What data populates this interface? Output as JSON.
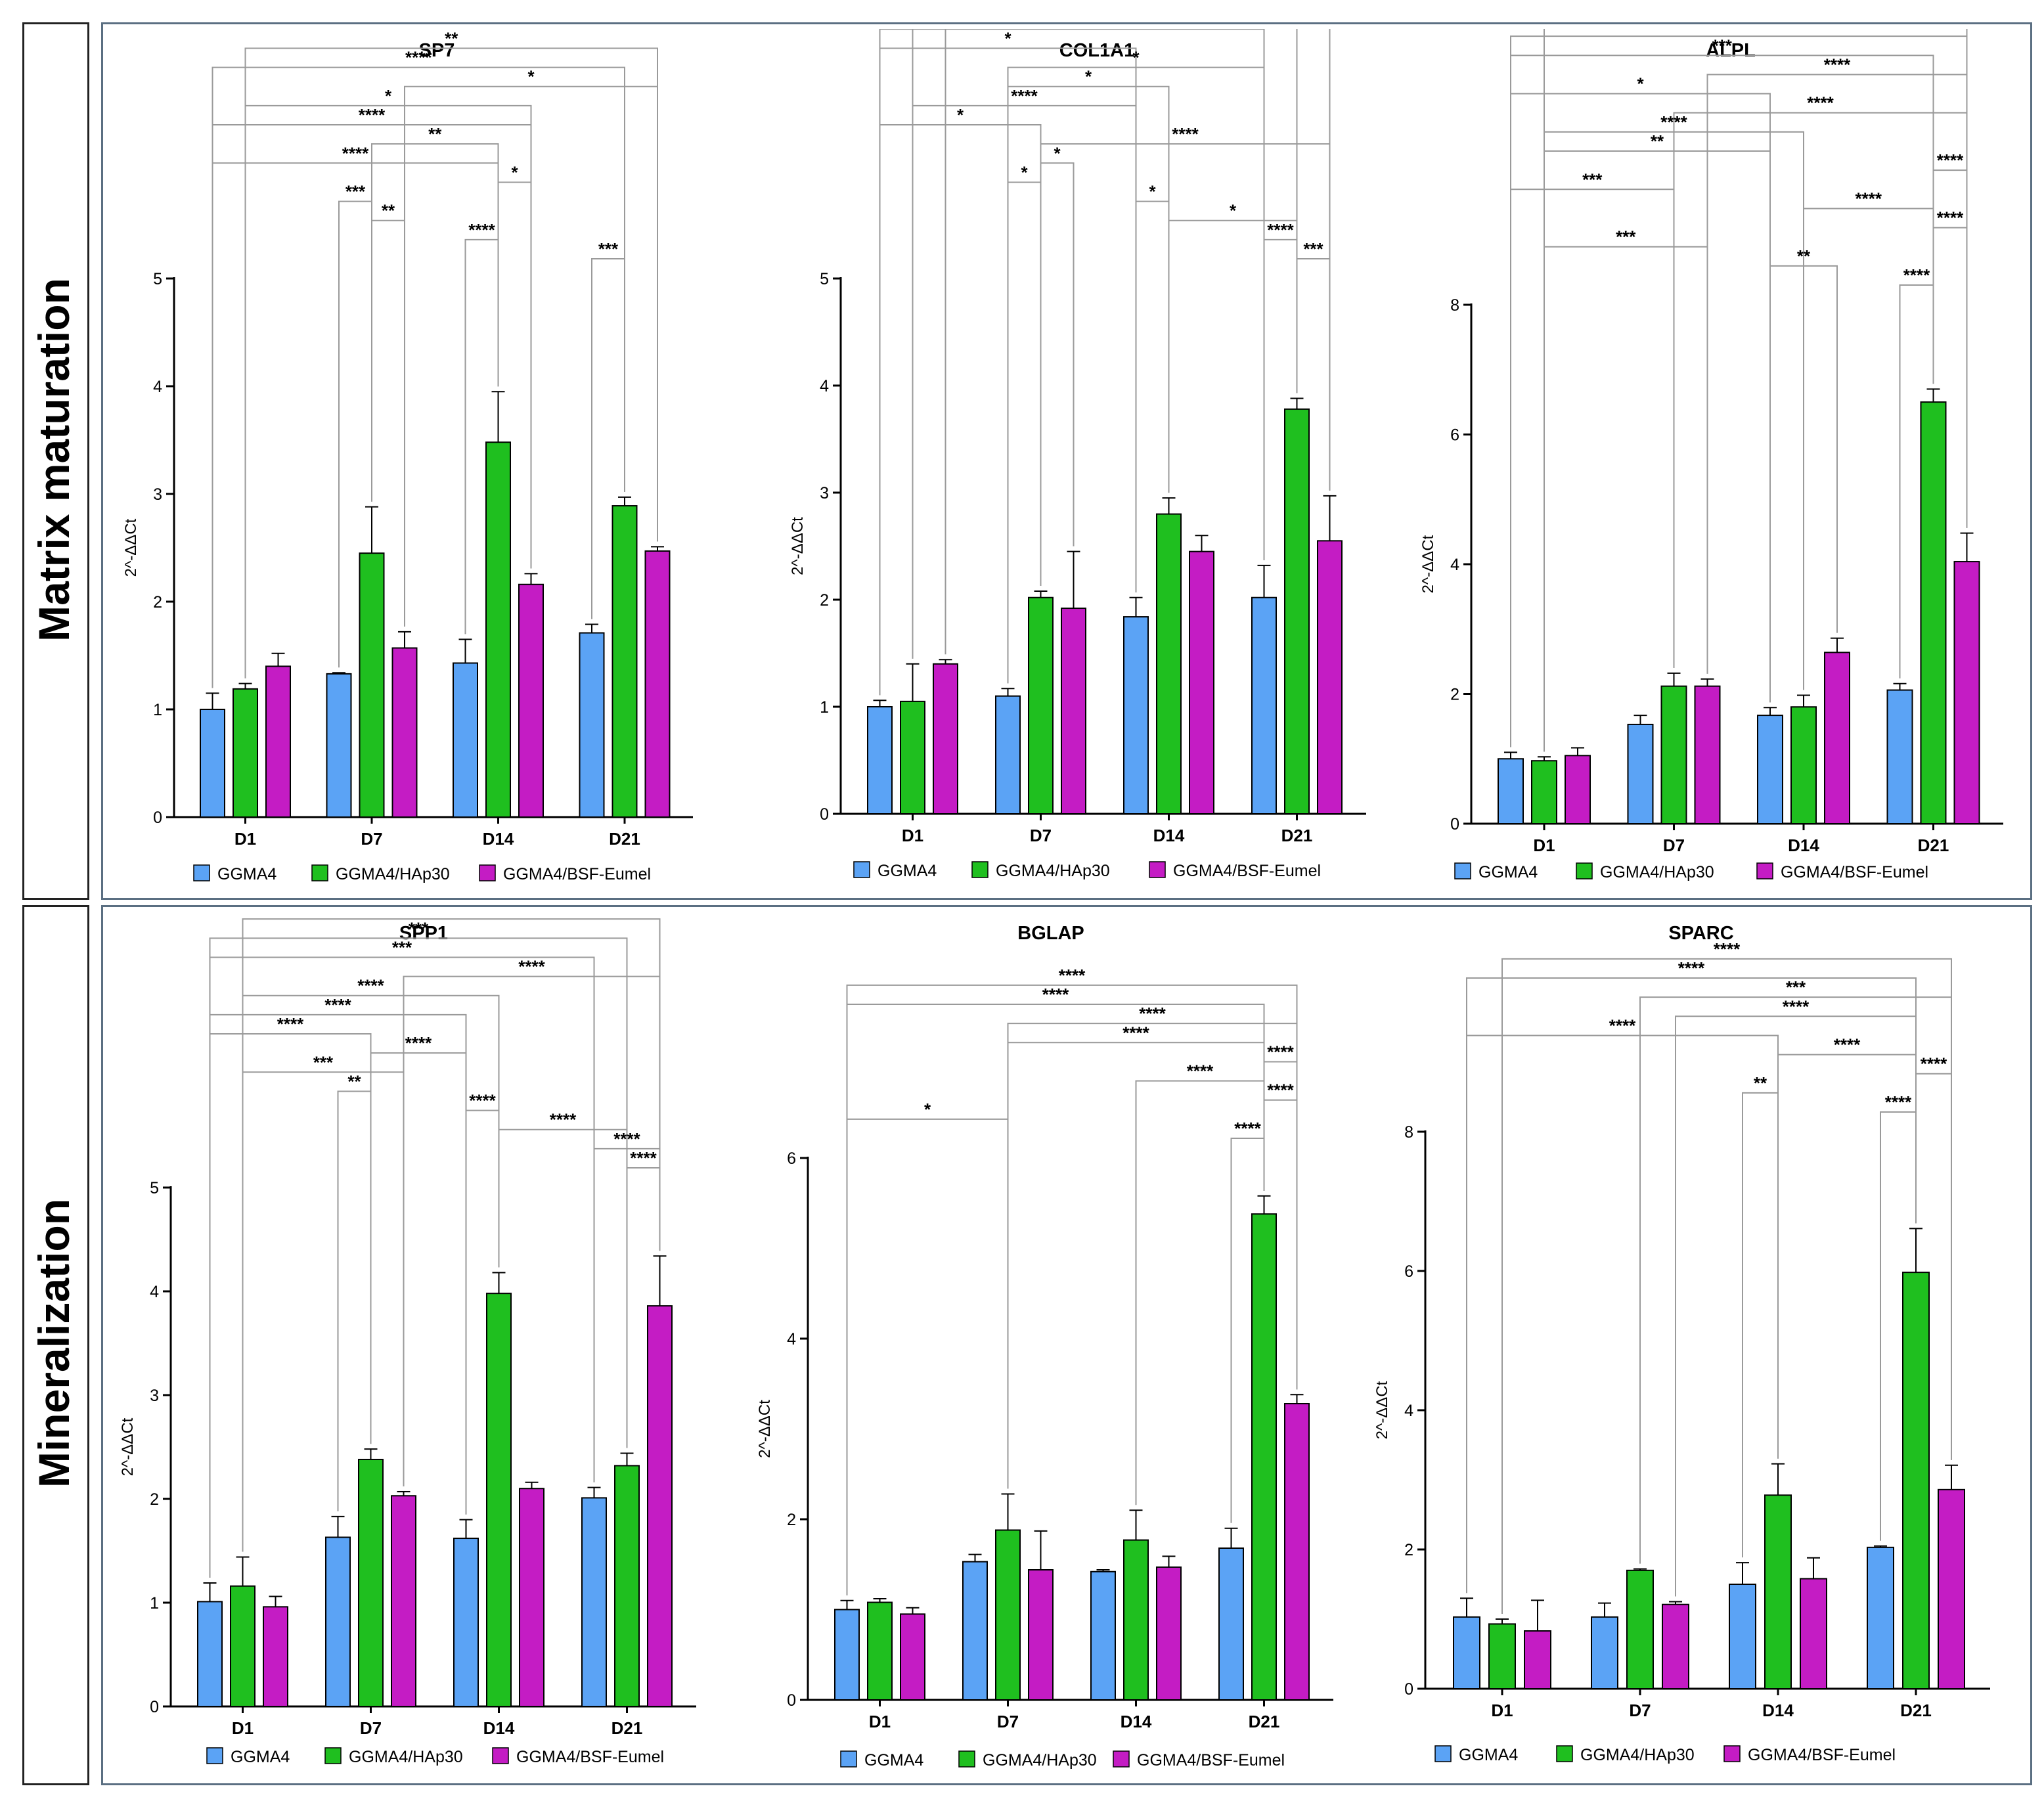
{
  "sections": [
    {
      "label": "Matrix maturation"
    },
    {
      "label": "Mineralization"
    }
  ],
  "legend": {
    "series": [
      {
        "name": "GGMA4",
        "color": "#5ba3f5"
      },
      {
        "name": "GGMA4/HAp30",
        "color": "#1fbf1f"
      },
      {
        "name": "GGMA4/BSF-Eumel",
        "color": "#c41cc4"
      }
    ]
  },
  "chart_data": [
    {
      "type": "bar",
      "title": "SP7",
      "xlabel": "",
      "ylabel": "2^-ΔΔCt",
      "categories": [
        "D1",
        "D7",
        "D14",
        "D21"
      ],
      "ylim": [
        0,
        5
      ],
      "yticks": [
        0,
        1,
        2,
        3,
        4,
        5
      ],
      "series": [
        {
          "name": "GGMA4",
          "values": [
            1.0,
            1.33,
            1.43,
            1.71
          ],
          "errors": [
            0.15,
            0.01,
            0.22,
            0.08
          ]
        },
        {
          "name": "GGMA4/HAp30",
          "values": [
            1.19,
            2.45,
            3.48,
            2.89
          ],
          "errors": [
            0.05,
            0.43,
            0.47,
            0.08
          ]
        },
        {
          "name": "GGMA4/BSF-Eumel",
          "values": [
            1.4,
            1.57,
            2.16,
            2.47
          ],
          "errors": [
            0.12,
            0.15,
            0.1,
            0.04
          ]
        }
      ],
      "annotations": [
        {
          "a": [
            0,
            1
          ],
          "b": [
            3,
            2
          ],
          "label": "**"
        },
        {
          "a": [
            0,
            0
          ],
          "b": [
            3,
            1
          ],
          "label": "****"
        },
        {
          "a": [
            1,
            2
          ],
          "b": [
            3,
            2
          ],
          "label": "*"
        },
        {
          "a": [
            0,
            1
          ],
          "b": [
            2,
            2
          ],
          "label": "*"
        },
        {
          "a": [
            0,
            0
          ],
          "b": [
            2,
            2
          ],
          "label": "****"
        },
        {
          "a": [
            1,
            1
          ],
          "b": [
            2,
            1
          ],
          "label": "**"
        },
        {
          "a": [
            0,
            0
          ],
          "b": [
            2,
            1
          ],
          "label": "****"
        },
        {
          "a": [
            2,
            1
          ],
          "b": [
            2,
            2
          ],
          "label": "*"
        },
        {
          "a": [
            1,
            0
          ],
          "b": [
            1,
            1
          ],
          "label": "***"
        },
        {
          "a": [
            1,
            1
          ],
          "b": [
            1,
            2
          ],
          "label": "**"
        },
        {
          "a": [
            2,
            0
          ],
          "b": [
            2,
            1
          ],
          "label": "****"
        },
        {
          "a": [
            3,
            0
          ],
          "b": [
            3,
            1
          ],
          "label": "***"
        }
      ]
    },
    {
      "type": "bar",
      "title": "COL1A1",
      "xlabel": "",
      "ylabel": "2^-ΔΔCt",
      "categories": [
        "D1",
        "D7",
        "D14",
        "D21"
      ],
      "ylim": [
        0,
        5
      ],
      "yticks": [
        0,
        1,
        2,
        3,
        4,
        5
      ],
      "series": [
        {
          "name": "GGMA4",
          "values": [
            1.0,
            1.1,
            1.84,
            2.02
          ],
          "errors": [
            0.06,
            0.07,
            0.18,
            0.3
          ]
        },
        {
          "name": "GGMA4/HAp30",
          "values": [
            1.05,
            2.02,
            2.8,
            3.78
          ],
          "errors": [
            0.35,
            0.06,
            0.15,
            0.1
          ]
        },
        {
          "name": "GGMA4/BSF-Eumel",
          "values": [
            1.4,
            1.92,
            2.45,
            2.55
          ],
          "errors": [
            0.04,
            0.53,
            0.15,
            0.42
          ]
        }
      ],
      "annotations": [
        {
          "a": [
            0,
            2
          ],
          "b": [
            3,
            2
          ],
          "label": "**"
        },
        {
          "a": [
            0,
            1
          ],
          "b": [
            3,
            1
          ],
          "label": "****"
        },
        {
          "a": [
            0,
            0
          ],
          "b": [
            3,
            0
          ],
          "label": "**"
        },
        {
          "a": [
            0,
            0
          ],
          "b": [
            2,
            0
          ],
          "label": "*"
        },
        {
          "a": [
            1,
            0
          ],
          "b": [
            3,
            0
          ],
          "label": "*"
        },
        {
          "a": [
            1,
            0
          ],
          "b": [
            2,
            1
          ],
          "label": "*"
        },
        {
          "a": [
            0,
            1
          ],
          "b": [
            2,
            0
          ],
          "label": "****"
        },
        {
          "a": [
            0,
            0
          ],
          "b": [
            1,
            1
          ],
          "label": "*"
        },
        {
          "a": [
            1,
            1
          ],
          "b": [
            3,
            2
          ],
          "label": "****"
        },
        {
          "a": [
            1,
            1
          ],
          "b": [
            1,
            2
          ],
          "label": "*"
        },
        {
          "a": [
            1,
            0
          ],
          "b": [
            1,
            1
          ],
          "label": "*"
        },
        {
          "a": [
            2,
            0
          ],
          "b": [
            2,
            1
          ],
          "label": "*"
        },
        {
          "a": [
            2,
            1
          ],
          "b": [
            3,
            1
          ],
          "label": "*"
        },
        {
          "a": [
            3,
            0
          ],
          "b": [
            3,
            1
          ],
          "label": "****"
        },
        {
          "a": [
            3,
            1
          ],
          "b": [
            3,
            2
          ],
          "label": "***"
        }
      ]
    },
    {
      "type": "bar",
      "title": "ALPL",
      "xlabel": "",
      "ylabel": "2^-ΔΔCt",
      "categories": [
        "D1",
        "D7",
        "D14",
        "D21"
      ],
      "ylim": [
        0,
        8
      ],
      "yticks": [
        0,
        2,
        4,
        6,
        8
      ],
      "series": [
        {
          "name": "GGMA4",
          "values": [
            1.0,
            1.53,
            1.67,
            2.06
          ],
          "errors": [
            0.1,
            0.14,
            0.12,
            0.1
          ]
        },
        {
          "name": "GGMA4/HAp30",
          "values": [
            0.97,
            2.12,
            1.8,
            6.5
          ],
          "errors": [
            0.06,
            0.2,
            0.18,
            0.2
          ]
        },
        {
          "name": "GGMA4/BSF-Eumel",
          "values": [
            1.05,
            2.12,
            2.64,
            4.04
          ],
          "errors": [
            0.12,
            0.11,
            0.22,
            0.44
          ]
        }
      ],
      "annotations": [
        {
          "a": [
            0,
            1
          ],
          "b": [
            3,
            2
          ],
          "label": "****"
        },
        {
          "a": [
            0,
            0
          ],
          "b": [
            3,
            2
          ],
          "label": "****"
        },
        {
          "a": [
            0,
            0
          ],
          "b": [
            3,
            1
          ],
          "label": "***"
        },
        {
          "a": [
            1,
            2
          ],
          "b": [
            3,
            2
          ],
          "label": "****"
        },
        {
          "a": [
            0,
            0
          ],
          "b": [
            2,
            0
          ],
          "label": "*"
        },
        {
          "a": [
            1,
            1
          ],
          "b": [
            3,
            2
          ],
          "label": "****"
        },
        {
          "a": [
            0,
            1
          ],
          "b": [
            2,
            1
          ],
          "label": "****"
        },
        {
          "a": [
            0,
            1
          ],
          "b": [
            2,
            0
          ],
          "label": "**"
        },
        {
          "a": [
            3,
            1
          ],
          "b": [
            3,
            2
          ],
          "label": "****"
        },
        {
          "a": [
            0,
            0
          ],
          "b": [
            1,
            1
          ],
          "label": "***"
        },
        {
          "a": [
            2,
            1
          ],
          "b": [
            3,
            1
          ],
          "label": "****"
        },
        {
          "a": [
            3,
            1
          ],
          "b": [
            3,
            2
          ],
          "label": "****"
        },
        {
          "a": [
            0,
            1
          ],
          "b": [
            1,
            2
          ],
          "label": "***"
        },
        {
          "a": [
            2,
            0
          ],
          "b": [
            2,
            2
          ],
          "label": "**"
        },
        {
          "a": [
            3,
            0
          ],
          "b": [
            3,
            1
          ],
          "label": "****"
        }
      ]
    },
    {
      "type": "bar",
      "title": "SPP1",
      "xlabel": "",
      "ylabel": "2^-ΔΔCt",
      "categories": [
        "D1",
        "D7",
        "D14",
        "D21"
      ],
      "ylim": [
        0,
        5
      ],
      "yticks": [
        0,
        1,
        2,
        3,
        4,
        5
      ],
      "series": [
        {
          "name": "GGMA4",
          "values": [
            1.01,
            1.63,
            1.62,
            2.01
          ],
          "errors": [
            0.18,
            0.2,
            0.18,
            0.1
          ]
        },
        {
          "name": "GGMA4/HAp30",
          "values": [
            1.16,
            2.38,
            3.98,
            2.32
          ],
          "errors": [
            0.28,
            0.1,
            0.2,
            0.12
          ]
        },
        {
          "name": "GGMA4/BSF-Eumel",
          "values": [
            0.96,
            2.03,
            2.1,
            3.86
          ],
          "errors": [
            0.1,
            0.04,
            0.06,
            0.48
          ]
        }
      ],
      "annotations": [
        {
          "a": [
            0,
            1
          ],
          "b": [
            3,
            2
          ],
          "label": "****"
        },
        {
          "a": [
            0,
            0
          ],
          "b": [
            3,
            1
          ],
          "label": "***"
        },
        {
          "a": [
            0,
            0
          ],
          "b": [
            3,
            0
          ],
          "label": "***"
        },
        {
          "a": [
            1,
            2
          ],
          "b": [
            3,
            2
          ],
          "label": "****"
        },
        {
          "a": [
            0,
            1
          ],
          "b": [
            2,
            1
          ],
          "label": "****"
        },
        {
          "a": [
            0,
            0
          ],
          "b": [
            2,
            0
          ],
          "label": "****"
        },
        {
          "a": [
            0,
            0
          ],
          "b": [
            1,
            1
          ],
          "label": "****"
        },
        {
          "a": [
            1,
            1
          ],
          "b": [
            2,
            0
          ],
          "label": "****"
        },
        {
          "a": [
            0,
            1
          ],
          "b": [
            1,
            2
          ],
          "label": "***"
        },
        {
          "a": [
            1,
            0
          ],
          "b": [
            1,
            1
          ],
          "label": "**"
        },
        {
          "a": [
            2,
            0
          ],
          "b": [
            2,
            1
          ],
          "label": "****"
        },
        {
          "a": [
            2,
            1
          ],
          "b": [
            3,
            1
          ],
          "label": "****"
        },
        {
          "a": [
            3,
            0
          ],
          "b": [
            3,
            2
          ],
          "label": "****"
        },
        {
          "a": [
            3,
            1
          ],
          "b": [
            3,
            2
          ],
          "label": "****"
        }
      ]
    },
    {
      "type": "bar",
      "title": "BGLAP",
      "xlabel": "",
      "ylabel": "2^-ΔΔCt",
      "categories": [
        "D1",
        "D7",
        "D14",
        "D21"
      ],
      "ylim": [
        0,
        6
      ],
      "yticks": [
        0,
        2,
        4,
        6
      ],
      "series": [
        {
          "name": "GGMA4",
          "values": [
            1.0,
            1.53,
            1.42,
            1.68
          ],
          "errors": [
            0.1,
            0.08,
            0.02,
            0.22
          ]
        },
        {
          "name": "GGMA4/HAp30",
          "values": [
            1.08,
            1.88,
            1.77,
            5.38
          ],
          "errors": [
            0.04,
            0.4,
            0.33,
            0.2
          ]
        },
        {
          "name": "GGMA4/BSF-Eumel",
          "values": [
            0.95,
            1.44,
            1.47,
            3.28
          ],
          "errors": [
            0.07,
            0.43,
            0.12,
            0.1
          ]
        }
      ],
      "annotations": [
        {
          "a": [
            0,
            0
          ],
          "b": [
            3,
            2
          ],
          "label": "****"
        },
        {
          "a": [
            0,
            0
          ],
          "b": [
            3,
            1
          ],
          "label": "****"
        },
        {
          "a": [
            1,
            1
          ],
          "b": [
            3,
            2
          ],
          "label": "****"
        },
        {
          "a": [
            1,
            1
          ],
          "b": [
            3,
            1
          ],
          "label": "****"
        },
        {
          "a": [
            3,
            1
          ],
          "b": [
            3,
            2
          ],
          "label": "****"
        },
        {
          "a": [
            2,
            1
          ],
          "b": [
            3,
            1
          ],
          "label": "****"
        },
        {
          "a": [
            3,
            1
          ],
          "b": [
            3,
            2
          ],
          "label": "****"
        },
        {
          "a": [
            0,
            0
          ],
          "b": [
            1,
            1
          ],
          "label": "*"
        },
        {
          "a": [
            3,
            0
          ],
          "b": [
            3,
            1
          ],
          "label": "****"
        }
      ]
    },
    {
      "type": "bar",
      "title": "SPARC",
      "xlabel": "",
      "ylabel": "2^-ΔΔCt",
      "categories": [
        "D1",
        "D7",
        "D14",
        "D21"
      ],
      "ylim": [
        0,
        8
      ],
      "yticks": [
        0,
        2,
        4,
        6,
        8
      ],
      "series": [
        {
          "name": "GGMA4",
          "values": [
            1.03,
            1.03,
            1.5,
            2.03
          ],
          "errors": [
            0.27,
            0.2,
            0.31,
            0.02
          ]
        },
        {
          "name": "GGMA4/HAp30",
          "values": [
            0.93,
            1.7,
            2.78,
            5.98
          ],
          "errors": [
            0.07,
            0.02,
            0.45,
            0.63
          ]
        },
        {
          "name": "GGMA4/BSF-Eumel",
          "values": [
            0.83,
            1.21,
            1.58,
            2.86
          ],
          "errors": [
            0.44,
            0.04,
            0.3,
            0.35
          ]
        }
      ],
      "annotations": [
        {
          "a": [
            0,
            1
          ],
          "b": [
            3,
            2
          ],
          "label": "****"
        },
        {
          "a": [
            0,
            0
          ],
          "b": [
            3,
            1
          ],
          "label": "****"
        },
        {
          "a": [
            1,
            1
          ],
          "b": [
            3,
            2
          ],
          "label": "***"
        },
        {
          "a": [
            1,
            2
          ],
          "b": [
            3,
            1
          ],
          "label": "****"
        },
        {
          "a": [
            0,
            0
          ],
          "b": [
            2,
            1
          ],
          "label": "****"
        },
        {
          "a": [
            2,
            1
          ],
          "b": [
            3,
            1
          ],
          "label": "****"
        },
        {
          "a": [
            3,
            1
          ],
          "b": [
            3,
            2
          ],
          "label": "****"
        },
        {
          "a": [
            2,
            0
          ],
          "b": [
            2,
            1
          ],
          "label": "**"
        },
        {
          "a": [
            3,
            0
          ],
          "b": [
            3,
            1
          ],
          "label": "****"
        }
      ]
    }
  ]
}
